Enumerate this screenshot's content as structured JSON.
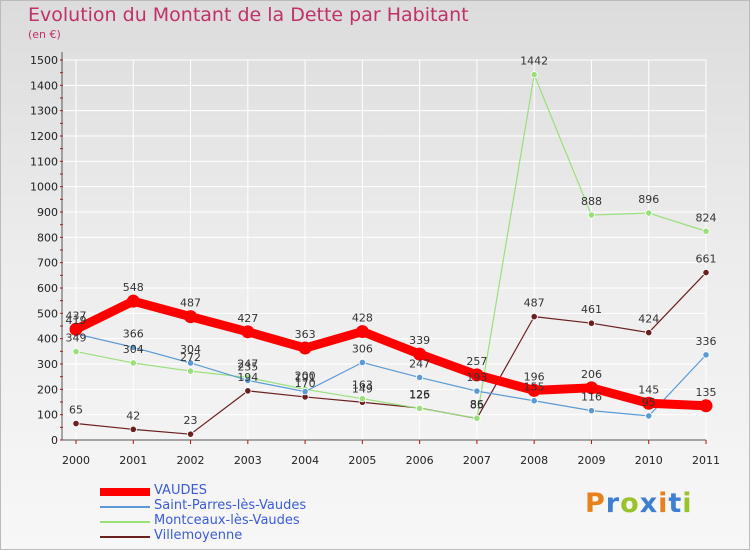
{
  "title": "Evolution du Montant de la Dette par Habitant",
  "subtitle": "(en €)",
  "brand": {
    "name": "Proxiti",
    "colors": [
      "#e8801c",
      "#3f7fd0",
      "#9ac22a",
      "#3f7fd0",
      "#e8801c",
      "#3f7fd0",
      "#9ac22a"
    ]
  },
  "chart_data": {
    "type": "line",
    "x": [
      "2000",
      "2001",
      "2002",
      "2003",
      "2004",
      "2005",
      "2006",
      "2007",
      "2008",
      "2009",
      "2010",
      "2011"
    ],
    "ylim": [
      0,
      1500
    ],
    "yticks": [
      0,
      100,
      200,
      300,
      400,
      500,
      600,
      700,
      800,
      900,
      1000,
      1100,
      1200,
      1300,
      1400,
      1500
    ],
    "grid": true,
    "legend_position": "bottom-left",
    "series": [
      {
        "name": "VAUDES",
        "color": "#ff0000",
        "values": [
          437,
          548,
          487,
          427,
          363,
          428,
          339,
          257,
          196,
          206,
          145,
          135
        ]
      },
      {
        "name": "Saint-Parres-lès-Vaudes",
        "color": "#5b9bd5",
        "values": [
          419,
          366,
          304,
          235,
          191,
          306,
          247,
          193,
          155,
          116,
          95,
          336
        ]
      },
      {
        "name": "Montceaux-lès-Vaudes",
        "color": "#99e07a",
        "values": [
          349,
          304,
          272,
          247,
          200,
          163,
          125,
          86,
          1442,
          888,
          896,
          824
        ]
      },
      {
        "name": "Villemoyenne",
        "color": "#6b1f1f",
        "values": [
          65,
          42,
          23,
          194,
          170,
          149,
          126,
          85,
          487,
          461,
          424,
          661
        ]
      }
    ]
  }
}
